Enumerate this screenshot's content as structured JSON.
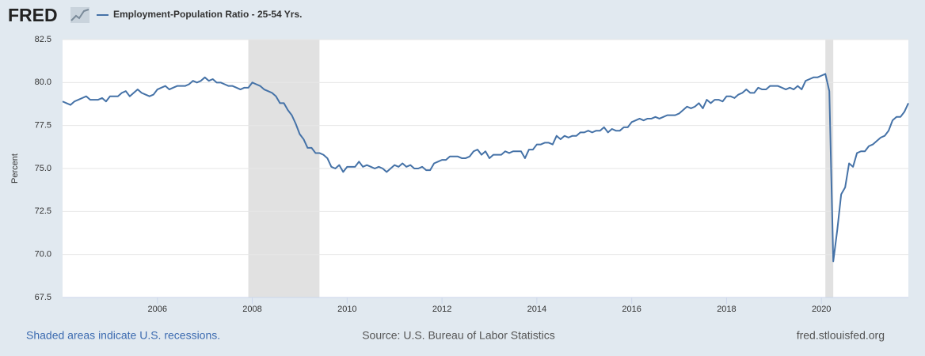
{
  "chart_data": {
    "type": "line",
    "logo": "FRED",
    "y_label": "Percent",
    "recession_note": "Shaded areas indicate U.S. recessions.",
    "source": "Source: U.S. Bureau of Labor Statistics",
    "site_url": "fred.stlouisfed.org",
    "x": [
      "2004-01",
      "2004-02",
      "2004-03",
      "2004-04",
      "2004-05",
      "2004-06",
      "2004-07",
      "2004-08",
      "2004-09",
      "2004-10",
      "2004-11",
      "2004-12",
      "2005-01",
      "2005-02",
      "2005-03",
      "2005-04",
      "2005-05",
      "2005-06",
      "2005-07",
      "2005-08",
      "2005-09",
      "2005-10",
      "2005-11",
      "2005-12",
      "2006-01",
      "2006-02",
      "2006-03",
      "2006-04",
      "2006-05",
      "2006-06",
      "2006-07",
      "2006-08",
      "2006-09",
      "2006-10",
      "2006-11",
      "2006-12",
      "2007-01",
      "2007-02",
      "2007-03",
      "2007-04",
      "2007-05",
      "2007-06",
      "2007-07",
      "2007-08",
      "2007-09",
      "2007-10",
      "2007-11",
      "2007-12",
      "2008-01",
      "2008-02",
      "2008-03",
      "2008-04",
      "2008-05",
      "2008-06",
      "2008-07",
      "2008-08",
      "2008-09",
      "2008-10",
      "2008-11",
      "2008-12",
      "2009-01",
      "2009-02",
      "2009-03",
      "2009-04",
      "2009-05",
      "2009-06",
      "2009-07",
      "2009-08",
      "2009-09",
      "2009-10",
      "2009-11",
      "2009-12",
      "2010-01",
      "2010-02",
      "2010-03",
      "2010-04",
      "2010-05",
      "2010-06",
      "2010-07",
      "2010-08",
      "2010-09",
      "2010-10",
      "2010-11",
      "2010-12",
      "2011-01",
      "2011-02",
      "2011-03",
      "2011-04",
      "2011-05",
      "2011-06",
      "2011-07",
      "2011-08",
      "2011-09",
      "2011-10",
      "2011-11",
      "2011-12",
      "2012-01",
      "2012-02",
      "2012-03",
      "2012-04",
      "2012-05",
      "2012-06",
      "2012-07",
      "2012-08",
      "2012-09",
      "2012-10",
      "2012-11",
      "2012-12",
      "2013-01",
      "2013-02",
      "2013-03",
      "2013-04",
      "2013-05",
      "2013-06",
      "2013-07",
      "2013-08",
      "2013-09",
      "2013-10",
      "2013-11",
      "2013-12",
      "2014-01",
      "2014-02",
      "2014-03",
      "2014-04",
      "2014-05",
      "2014-06",
      "2014-07",
      "2014-08",
      "2014-09",
      "2014-10",
      "2014-11",
      "2014-12",
      "2015-01",
      "2015-02",
      "2015-03",
      "2015-04",
      "2015-05",
      "2015-06",
      "2015-07",
      "2015-08",
      "2015-09",
      "2015-10",
      "2015-11",
      "2015-12",
      "2016-01",
      "2016-02",
      "2016-03",
      "2016-04",
      "2016-05",
      "2016-06",
      "2016-07",
      "2016-08",
      "2016-09",
      "2016-10",
      "2016-11",
      "2016-12",
      "2017-01",
      "2017-02",
      "2017-03",
      "2017-04",
      "2017-05",
      "2017-06",
      "2017-07",
      "2017-08",
      "2017-09",
      "2017-10",
      "2017-11",
      "2017-12",
      "2018-01",
      "2018-02",
      "2018-03",
      "2018-04",
      "2018-05",
      "2018-06",
      "2018-07",
      "2018-08",
      "2018-09",
      "2018-10",
      "2018-11",
      "2018-12",
      "2019-01",
      "2019-02",
      "2019-03",
      "2019-04",
      "2019-05",
      "2019-06",
      "2019-07",
      "2019-08",
      "2019-09",
      "2019-10",
      "2019-11",
      "2019-12",
      "2020-01",
      "2020-02",
      "2020-03",
      "2020-04",
      "2020-05",
      "2020-06",
      "2020-07",
      "2020-08",
      "2020-09",
      "2020-10",
      "2020-11",
      "2020-12",
      "2021-01",
      "2021-02",
      "2021-03",
      "2021-04",
      "2021-05",
      "2021-06",
      "2021-07",
      "2021-08",
      "2021-09",
      "2021-10",
      "2021-11"
    ],
    "series": [
      {
        "name": "Employment-Population Ratio - 25-54 Yrs.",
        "color": "#4572a7",
        "values": [
          78.9,
          78.8,
          78.7,
          78.9,
          79.0,
          79.1,
          79.2,
          79.0,
          79.0,
          79.0,
          79.1,
          78.9,
          79.2,
          79.2,
          79.2,
          79.4,
          79.5,
          79.2,
          79.4,
          79.6,
          79.4,
          79.3,
          79.2,
          79.3,
          79.6,
          79.7,
          79.8,
          79.6,
          79.7,
          79.8,
          79.8,
          79.8,
          79.9,
          80.1,
          80.0,
          80.1,
          80.3,
          80.1,
          80.2,
          80.0,
          80.0,
          79.9,
          79.8,
          79.8,
          79.7,
          79.6,
          79.7,
          79.7,
          80.0,
          79.9,
          79.8,
          79.6,
          79.5,
          79.4,
          79.2,
          78.8,
          78.8,
          78.4,
          78.1,
          77.6,
          77.0,
          76.7,
          76.2,
          76.2,
          75.9,
          75.9,
          75.8,
          75.6,
          75.1,
          75.0,
          75.2,
          74.8,
          75.1,
          75.1,
          75.1,
          75.4,
          75.1,
          75.2,
          75.1,
          75.0,
          75.1,
          75.0,
          74.8,
          75.0,
          75.2,
          75.1,
          75.3,
          75.1,
          75.2,
          75.0,
          75.0,
          75.1,
          74.9,
          74.9,
          75.3,
          75.4,
          75.5,
          75.5,
          75.7,
          75.7,
          75.7,
          75.6,
          75.6,
          75.7,
          76.0,
          76.1,
          75.8,
          76.0,
          75.6,
          75.8,
          75.8,
          75.8,
          76.0,
          75.9,
          76.0,
          76.0,
          76.0,
          75.6,
          76.1,
          76.1,
          76.4,
          76.4,
          76.5,
          76.5,
          76.4,
          76.9,
          76.7,
          76.9,
          76.8,
          76.9,
          76.9,
          77.1,
          77.1,
          77.2,
          77.1,
          77.2,
          77.2,
          77.4,
          77.1,
          77.3,
          77.2,
          77.2,
          77.4,
          77.4,
          77.7,
          77.8,
          77.9,
          77.8,
          77.9,
          77.9,
          78.0,
          77.9,
          78.0,
          78.1,
          78.1,
          78.1,
          78.2,
          78.4,
          78.6,
          78.5,
          78.6,
          78.8,
          78.5,
          79.0,
          78.8,
          79.0,
          79.0,
          78.9,
          79.2,
          79.2,
          79.1,
          79.3,
          79.4,
          79.6,
          79.4,
          79.4,
          79.7,
          79.6,
          79.6,
          79.8,
          79.8,
          79.8,
          79.7,
          79.6,
          79.7,
          79.6,
          79.8,
          79.6,
          80.1,
          80.2,
          80.3,
          80.3,
          80.4,
          80.5,
          79.5,
          69.6,
          71.4,
          73.5,
          73.9,
          75.3,
          75.1,
          75.9,
          76.0,
          76.0,
          76.3,
          76.4,
          76.6,
          76.8,
          76.9,
          77.2,
          77.8,
          78.0,
          78.0,
          78.3,
          78.8
        ]
      }
    ],
    "recessions": [
      [
        "2007-12",
        "2009-06"
      ],
      [
        "2020-02",
        "2020-04"
      ]
    ],
    "recession_color": "#e1e1e1",
    "xlim": [
      "2004-01",
      "2021-11"
    ],
    "xticks": [
      2006,
      2008,
      2010,
      2012,
      2014,
      2016,
      2018,
      2020
    ],
    "ylim": [
      67.5,
      82.5
    ],
    "yticks": [
      67.5,
      {
        "value": 70,
        "label": "70.0"
      },
      72.5,
      {
        "value": 75,
        "label": "75.0"
      },
      77.5,
      {
        "value": 80,
        "label": "80.0"
      },
      82.5
    ],
    "grid": true
  }
}
